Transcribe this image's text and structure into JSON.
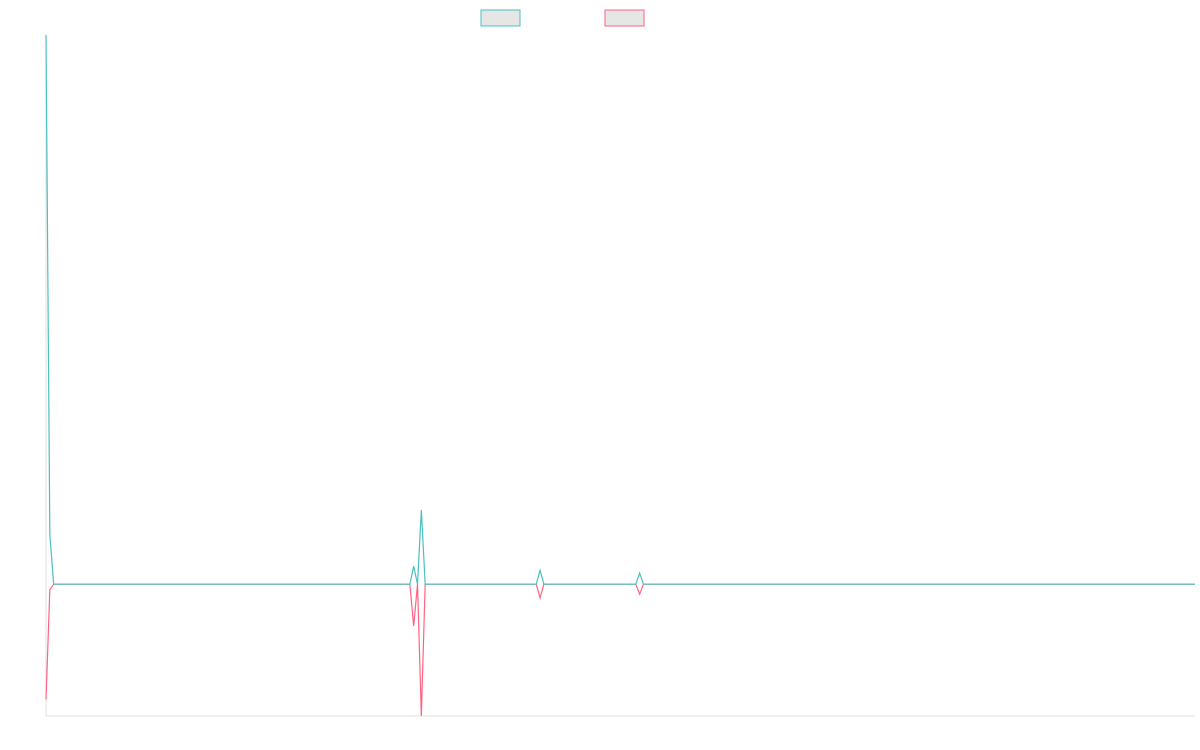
{
  "chart_data": {
    "type": "line",
    "x": [
      0,
      1,
      2,
      95,
      96,
      97,
      98,
      99,
      128,
      129,
      130,
      154,
      155,
      156,
      300
    ],
    "xlim": [
      0,
      300
    ],
    "ylim": [
      -24,
      100
    ],
    "series": [
      {
        "color": "#4bc0c0",
        "values": [
          100,
          9,
          0,
          0,
          3.3,
          0,
          13.5,
          0,
          0,
          2.5,
          0,
          0,
          2,
          0,
          0
        ]
      },
      {
        "color": "#ff6384",
        "values": [
          -21,
          -1,
          0,
          0,
          -7.6,
          0,
          -24,
          0,
          0,
          -2.5,
          0,
          0,
          -1.8,
          0,
          0
        ]
      }
    ]
  }
}
